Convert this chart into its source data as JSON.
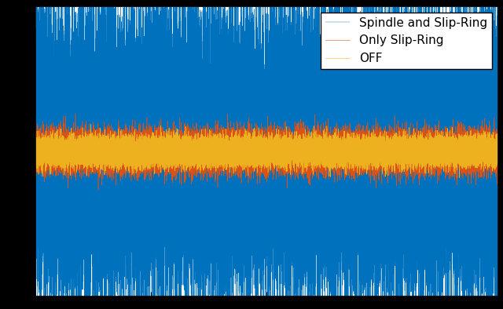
{
  "title": "",
  "xlabel": "",
  "ylabel": "",
  "legend_labels": [
    "Spindle and Slip-Ring",
    "Only Slip-Ring",
    "OFF"
  ],
  "line_colors": [
    "#0072BD",
    "#D95319",
    "#EDB120"
  ],
  "background_color": "#ffffff",
  "grid_color": "#b0b0b0",
  "n_samples": 50000,
  "spindle_amplitude": 0.55,
  "slip_ring_amplitude": 0.08,
  "off_amplitude": 0.055,
  "ylim": [
    -1.2,
    1.2
  ],
  "xlim": [
    0,
    50000
  ],
  "figsize": [
    6.4,
    3.94
  ],
  "dpi": 100,
  "spindle_linewidth": 0.3,
  "other_linewidth": 0.4,
  "legend_fontsize": 11,
  "legend_loc": "upper right"
}
